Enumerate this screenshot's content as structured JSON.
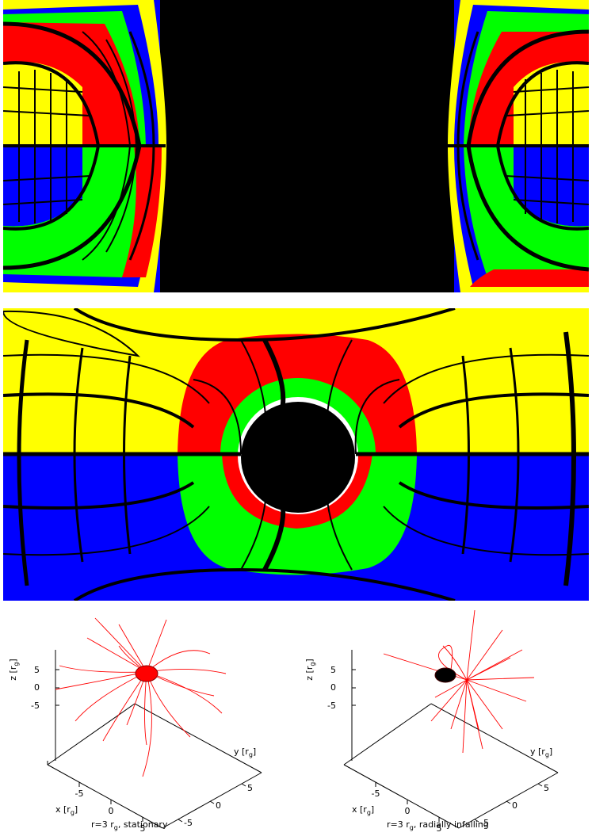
{
  "colors": {
    "yellow": "#ffff00",
    "red": "#ff0000",
    "green": "#00ff00",
    "blue": "#0000ff",
    "black": "#000000",
    "ray": "#ff0000"
  },
  "plots": [
    {
      "z_axis_label": "z [r",
      "x_axis_label": "x [r",
      "y_axis_label": "y [r",
      "subscript": "g",
      "z_ticks": [
        "5",
        "0",
        "-5"
      ],
      "x_ticks": [
        "-5",
        "0",
        "5"
      ],
      "y_ticks": [
        "5",
        "0",
        "-5"
      ],
      "caption_pre": "r=3 r",
      "caption_sub": "g",
      "caption_post": ", stationary"
    },
    {
      "z_axis_label": "z [r",
      "x_axis_label": "x [r",
      "y_axis_label": "y [r",
      "subscript": "g",
      "z_ticks": [
        "5",
        "0",
        "-5"
      ],
      "x_ticks": [
        "-5",
        "0",
        "5"
      ],
      "y_ticks": [
        "5",
        "0",
        "-5"
      ],
      "caption_pre": "r=3 r",
      "caption_sub": "g",
      "caption_post": ", radially infalling"
    }
  ]
}
